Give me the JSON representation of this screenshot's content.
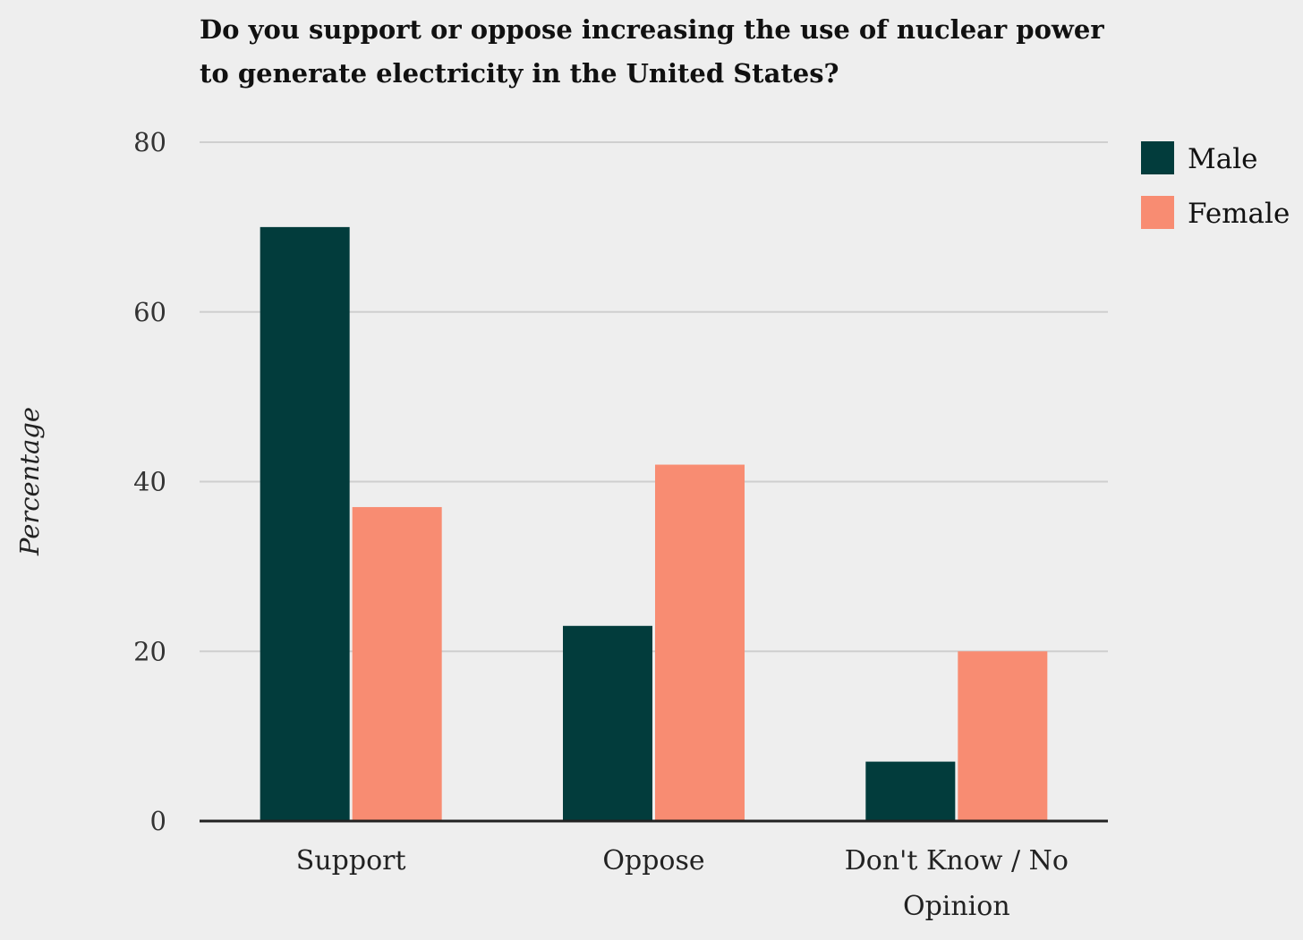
{
  "chart_data": {
    "type": "bar",
    "title_lines": [
      "Do you support or oppose increasing the use of nuclear power",
      "to generate electricity in the United States?"
    ],
    "ylabel": "Percentage",
    "xlabel": "",
    "ylim": [
      0,
      80
    ],
    "yticks": [
      "0",
      "20",
      "40",
      "60",
      "80"
    ],
    "grid": true,
    "legend_position": "top-right",
    "categories": [
      [
        "Support"
      ],
      [
        "Oppose"
      ],
      [
        "Don't Know / No",
        "Opinion"
      ]
    ],
    "series": [
      {
        "name": "Male",
        "color": "#023c3c",
        "values": [
          70,
          23,
          7
        ]
      },
      {
        "name": "Female",
        "color": "#f88c72",
        "values": [
          37,
          42,
          20
        ]
      }
    ]
  }
}
